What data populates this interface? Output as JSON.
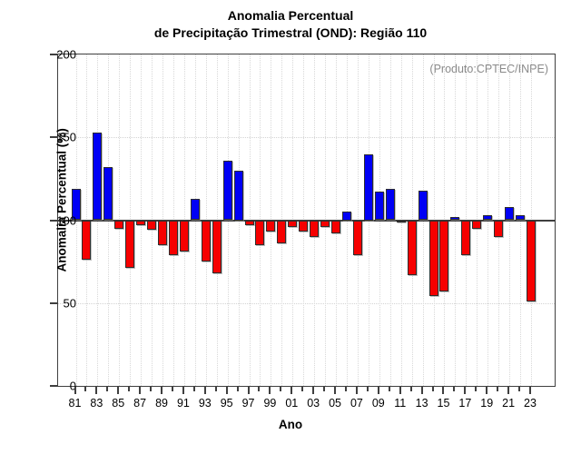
{
  "title": {
    "line1": "Anomalia Percentual",
    "line2": "de Precipitação Trimestral (OND): Região 110"
  },
  "annotation": "(Produto:CPTEC/INPE)",
  "chart_data": {
    "type": "bar",
    "x": [
      1981,
      1982,
      1983,
      1984,
      1985,
      1986,
      1987,
      1988,
      1989,
      1990,
      1991,
      1992,
      1993,
      1994,
      1995,
      1996,
      1997,
      1998,
      1999,
      2000,
      2001,
      2002,
      2003,
      2004,
      2005,
      2006,
      2007,
      2008,
      2009,
      2010,
      2011,
      2012,
      2013,
      2014,
      2015,
      2016,
      2017,
      2018,
      2019,
      2020,
      2021,
      2022,
      2023
    ],
    "values": [
      119,
      76,
      153,
      132,
      95,
      71,
      97,
      94,
      85,
      79,
      81,
      113,
      75,
      68,
      136,
      130,
      97,
      85,
      93,
      86,
      96,
      93,
      90,
      96,
      92,
      105,
      79,
      140,
      117,
      119,
      100,
      67,
      118,
      54,
      57,
      102,
      79,
      95,
      103,
      90,
      108,
      103,
      51
    ],
    "baseline": 100,
    "title": "Anomalia Percentual de Precipitação Trimestral (OND): Região 110",
    "xlabel": "Ano",
    "ylabel": "Anomalia Percentual (%)",
    "ylim": [
      0,
      200
    ],
    "yticks": [
      0,
      50,
      100,
      150,
      200
    ],
    "xtick_labels": [
      "81",
      "83",
      "85",
      "87",
      "89",
      "91",
      "93",
      "95",
      "97",
      "99",
      "01",
      "03",
      "05",
      "07",
      "09",
      "11",
      "13",
      "15",
      "17",
      "19",
      "21",
      "23"
    ],
    "grid": "dotted",
    "legend": "none",
    "colors": {
      "above_baseline": "#0000f5",
      "below_baseline": "#f60000",
      "bar_border": "#2e2e2e",
      "axis": "#3f3f3f",
      "grid_color": "#d6d6d6",
      "annotation_text": "#8a8a8a"
    }
  }
}
